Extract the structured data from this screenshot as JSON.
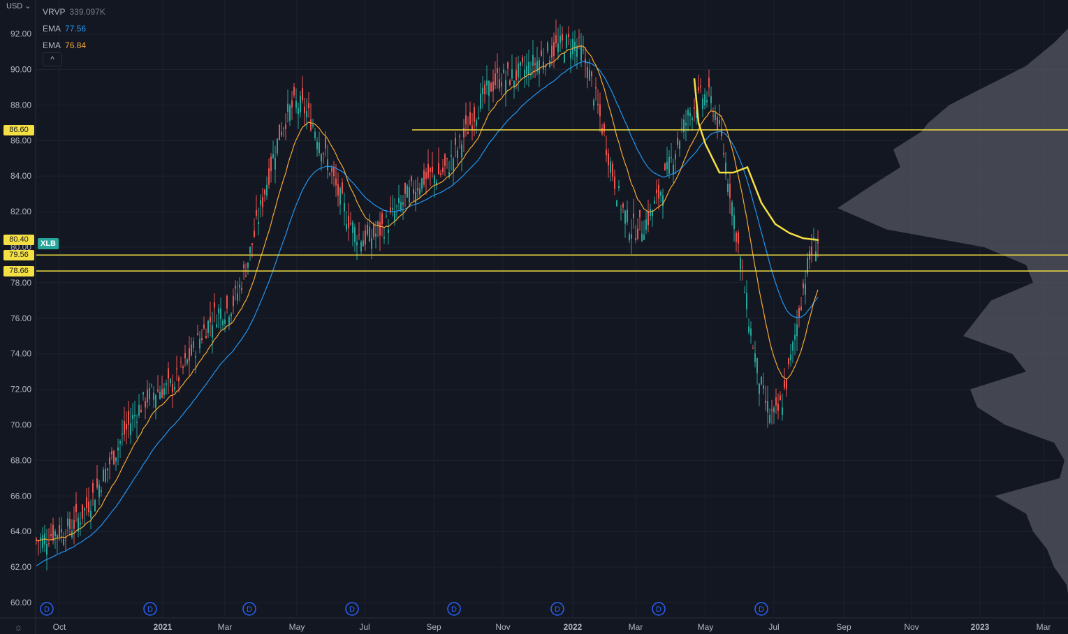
{
  "header": {
    "currency": "USD",
    "currency_caret": "⌄"
  },
  "legend": [
    {
      "name": "VRVP",
      "value": "339.097K",
      "color": "#787b86"
    },
    {
      "name": "EMA",
      "value": "77.56",
      "color": "#2196f3"
    },
    {
      "name": "EMA",
      "value": "76.84",
      "color": "#f7a934"
    }
  ],
  "collapse_label": "^",
  "symbol": "XLB",
  "settings_icon": "☼",
  "price_tags": [
    {
      "label": "86.60",
      "price": 86.6,
      "bg": "#f5e043"
    },
    {
      "label": "80.40",
      "price": 80.4,
      "bg": "#f5e043"
    },
    {
      "label": "79.56",
      "price": 79.56,
      "bg": "#f5e043"
    },
    {
      "label": "78.66",
      "price": 78.66,
      "bg": "#f5e043"
    }
  ],
  "chart_data": {
    "type": "candlestick",
    "y_ticks": [
      "92.00",
      "90.00",
      "88.00",
      "86.00",
      "84.00",
      "82.00",
      "80.00",
      "78.00",
      "76.00",
      "74.00",
      "72.00",
      "70.00",
      "68.00",
      "66.00",
      "64.00",
      "62.00",
      "60.00"
    ],
    "x_ticks": [
      "Oct",
      "2021",
      "Mar",
      "May",
      "Jul",
      "Sep",
      "Nov",
      "2022",
      "Mar",
      "May",
      "Jul",
      "Sep",
      "Nov",
      "2023",
      "Mar"
    ],
    "ylim": [
      59.5,
      93
    ],
    "horizontal_levels": [
      86.6,
      79.56,
      78.66
    ],
    "dividend_marker": "D",
    "dividend_count": 8,
    "price_path": [
      {
        "date": "Oct",
        "close": 64.0
      },
      {
        "date": "2021",
        "close": 72.0
      },
      {
        "date": "Mar",
        "close": 77.0
      },
      {
        "date": "May",
        "close": 86.5
      },
      {
        "date": "Jul",
        "close": 81.0
      },
      {
        "date": "Sep",
        "close": 83.0
      },
      {
        "date": "Nov",
        "close": 87.0
      },
      {
        "date": "2022",
        "close": 89.5
      },
      {
        "date": "Mar",
        "close": 83.0
      },
      {
        "date": "May",
        "close": 84.0
      },
      {
        "date": "Jul",
        "close": 72.0
      },
      {
        "date": "Sep",
        "close": 80.4
      }
    ],
    "ema_values": {
      "blue": 77.56,
      "orange": 76.84
    },
    "colors": {
      "up": "#26a69a",
      "down": "#ef5350",
      "ema_fast": "#f7a934",
      "ema_slow": "#2196f3",
      "anchored": "#f5e043",
      "profile": "#5d606b",
      "grid": "#1e222d"
    }
  }
}
